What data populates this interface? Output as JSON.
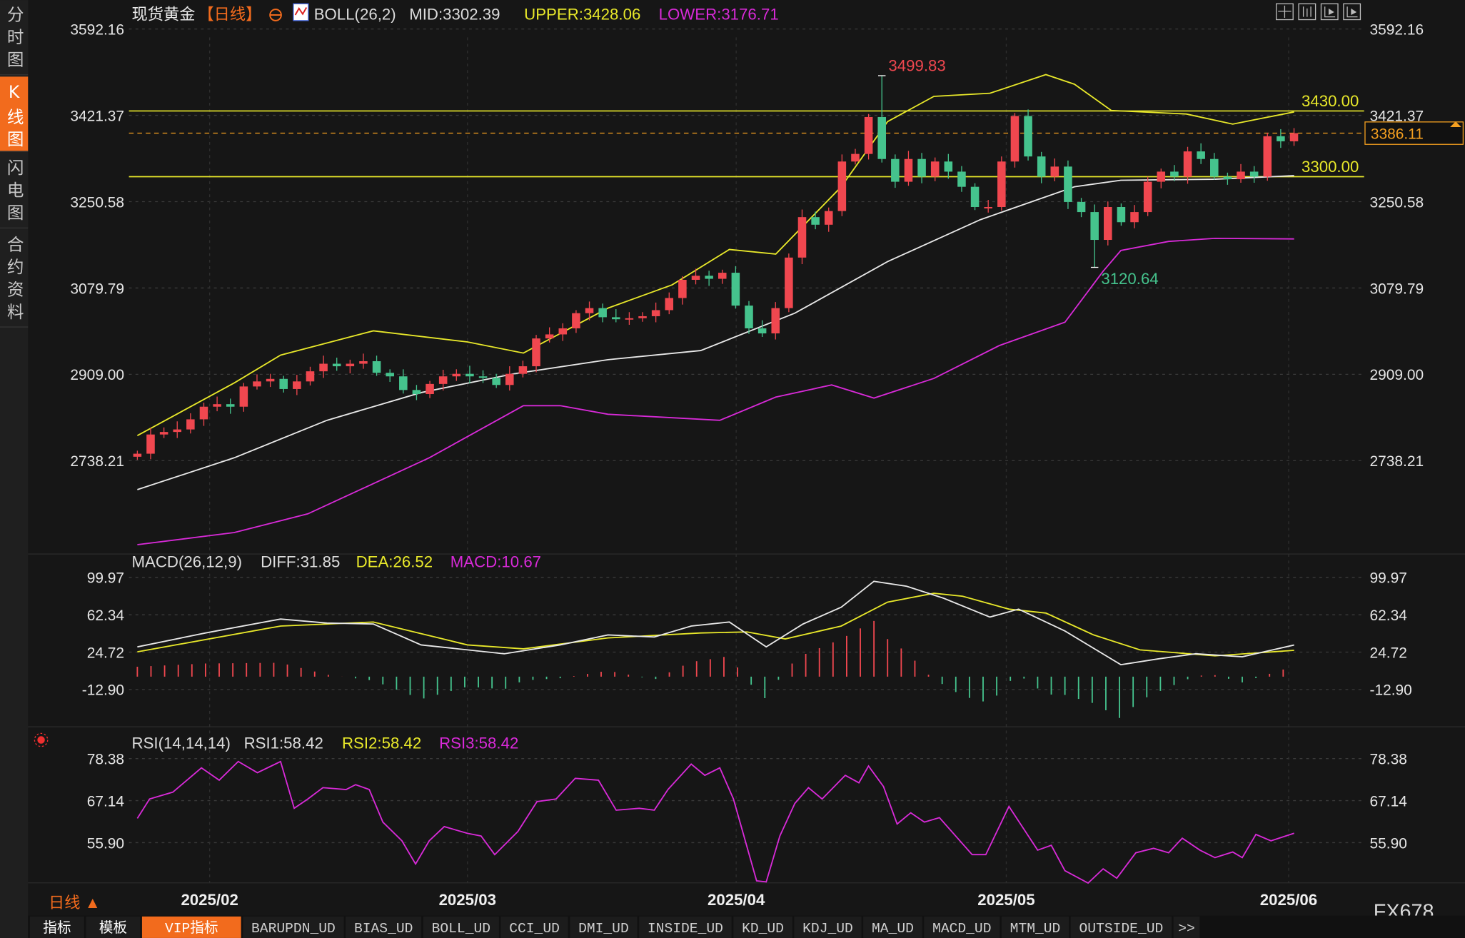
{
  "sidebar": {
    "items": [
      {
        "label": "分时图",
        "chars": [
          "分",
          "时",
          "图"
        ],
        "active": false
      },
      {
        "label": "K线图",
        "chars": [
          "K",
          "线",
          "图"
        ],
        "active": true
      },
      {
        "label": "闪电图",
        "chars": [
          "闪",
          "电",
          "图"
        ],
        "active": false
      },
      {
        "label": "合约资料",
        "chars": [
          "合",
          "约",
          "资",
          "料"
        ],
        "active": false
      }
    ]
  },
  "header": {
    "symbol": "现货黄金",
    "period": "【日线】",
    "boll": "BOLL(26,2)",
    "mid": "MID:3302.39",
    "upper": "UPPER:3428.06",
    "lower": "LOWER:3176.71"
  },
  "price_axis": [
    "3592.16",
    "3421.37",
    "3250.58",
    "3079.79",
    "2909.00",
    "2738.21"
  ],
  "price_axis_values": [
    3592.16,
    3421.37,
    3250.58,
    3079.79,
    2909.0,
    2738.21
  ],
  "current_price": "3386.11",
  "current_price_value": 3386.11,
  "hlines": [
    {
      "label": "3430.00",
      "value": 3430.0
    },
    {
      "label": "3300.00",
      "value": 3300.0
    }
  ],
  "marks": {
    "high": {
      "index": 56,
      "value": 3499.83,
      "label": "3499.83"
    },
    "low": {
      "index": 72,
      "value": 3120.64,
      "label": "3120.64"
    }
  },
  "closes": [
    2752,
    2790,
    2795,
    2800,
    2820,
    2845,
    2850,
    2845,
    2885,
    2895,
    2900,
    2880,
    2895,
    2915,
    2930,
    2925,
    2930,
    2935,
    2912,
    2905,
    2878,
    2870,
    2890,
    2905,
    2910,
    2905,
    2902,
    2888,
    2910,
    2925,
    2980,
    2988,
    3000,
    3030,
    3040,
    3022,
    3018,
    3020,
    3024,
    3036,
    3060,
    3096,
    3104,
    3098,
    3110,
    3045,
    3000,
    2990,
    3040,
    3140,
    3220,
    3205,
    3232,
    3330,
    3345,
    3418,
    3335,
    3290,
    3335,
    3300,
    3330,
    3310,
    3280,
    3240,
    3240,
    3330,
    3420,
    3340,
    3300,
    3320,
    3250,
    3230,
    3175,
    3240,
    3210,
    3230,
    3290,
    3310,
    3300,
    3350,
    3335,
    3300,
    3295,
    3310,
    3300,
    3380,
    3370,
    3386.11
  ],
  "boll_lines": {
    "mid": [
      [
        0,
        2681
      ],
      [
        7.1,
        2744
      ],
      [
        13.9,
        2818
      ],
      [
        20.8,
        2873
      ],
      [
        27.6,
        2910
      ],
      [
        34.5,
        2938
      ],
      [
        41.3,
        2956
      ],
      [
        48.2,
        3030
      ],
      [
        55,
        3132
      ],
      [
        61.8,
        3215
      ],
      [
        68.7,
        3280
      ],
      [
        72.1,
        3293
      ],
      [
        79,
        3295
      ],
      [
        84.8,
        3302
      ]
    ],
    "upper": [
      [
        0,
        2788
      ],
      [
        7.1,
        2892
      ],
      [
        10.5,
        2947
      ],
      [
        17.3,
        2995
      ],
      [
        24.2,
        2973
      ],
      [
        28.3,
        2951
      ],
      [
        34.5,
        3040
      ],
      [
        39.2,
        3086
      ],
      [
        43.4,
        3156
      ],
      [
        46.8,
        3147
      ],
      [
        51.6,
        3280
      ],
      [
        55,
        3409
      ],
      [
        58.4,
        3459
      ],
      [
        62.5,
        3465
      ],
      [
        66.6,
        3502
      ],
      [
        68.7,
        3483
      ],
      [
        71.4,
        3431
      ],
      [
        76.9,
        3424
      ],
      [
        80.3,
        3404
      ],
      [
        84.8,
        3428
      ]
    ],
    "lower": [
      [
        0,
        2572
      ],
      [
        7.1,
        2596
      ],
      [
        12.5,
        2633
      ],
      [
        21.4,
        2744
      ],
      [
        28.3,
        2847
      ],
      [
        31,
        2847
      ],
      [
        34.5,
        2830
      ],
      [
        42.7,
        2818
      ],
      [
        46.8,
        2864
      ],
      [
        50.9,
        2888
      ],
      [
        54,
        2862
      ],
      [
        58.4,
        2901
      ],
      [
        63.2,
        2966
      ],
      [
        68,
        3012
      ],
      [
        70.8,
        3113
      ],
      [
        72.1,
        3154
      ],
      [
        75.6,
        3172
      ],
      [
        79,
        3178
      ],
      [
        84.8,
        3177
      ]
    ]
  },
  "macd": {
    "title": "MACD(26,12,9)",
    "diff_label": "DIFF:31.85",
    "dea_label": "DEA:26.52",
    "macd_label": "MACD:10.67",
    "axis": [
      "99.97",
      "62.34",
      "24.72",
      "-12.90"
    ],
    "axis_values": [
      99.97,
      62.34,
      24.72,
      -12.9
    ],
    "diff": [
      [
        0,
        30
      ],
      [
        5,
        44
      ],
      [
        10.5,
        58
      ],
      [
        13.9,
        54
      ],
      [
        17.3,
        53
      ],
      [
        20.8,
        32
      ],
      [
        26.9,
        23
      ],
      [
        31,
        32
      ],
      [
        34.5,
        42
      ],
      [
        37.9,
        40
      ],
      [
        40.6,
        51
      ],
      [
        43.4,
        55
      ],
      [
        46.1,
        30
      ],
      [
        48.8,
        53
      ],
      [
        51.6,
        70
      ],
      [
        54,
        96
      ],
      [
        56.4,
        91
      ],
      [
        59.1,
        79
      ],
      [
        62.5,
        60
      ],
      [
        64.6,
        68
      ],
      [
        68,
        46
      ],
      [
        72.1,
        12
      ],
      [
        74.9,
        18
      ],
      [
        77.6,
        23
      ],
      [
        81,
        20
      ],
      [
        84.8,
        31.85
      ]
    ],
    "dea": [
      [
        0,
        25
      ],
      [
        10.5,
        51
      ],
      [
        17.3,
        55
      ],
      [
        24.2,
        32
      ],
      [
        28.3,
        28
      ],
      [
        34.5,
        39
      ],
      [
        41.3,
        44
      ],
      [
        44.7,
        45
      ],
      [
        47.5,
        38
      ],
      [
        51.6,
        51
      ],
      [
        55,
        75
      ],
      [
        58.4,
        84
      ],
      [
        60.5,
        81
      ],
      [
        63.9,
        68
      ],
      [
        66.6,
        64
      ],
      [
        70.1,
        42
      ],
      [
        73.5,
        27
      ],
      [
        79,
        21
      ],
      [
        84.8,
        26.52
      ]
    ]
  },
  "rsi": {
    "title": "RSI(14,14,14)",
    "rsi1_label": "RSI1:58.42",
    "rsi2_label": "RSI2:58.42",
    "rsi3_label": "RSI3:58.42",
    "axis": [
      "78.38",
      "67.14",
      "55.90"
    ],
    "axis_values": [
      78.38,
      67.14,
      55.9
    ],
    "values": [
      [
        0,
        62.4
      ],
      [
        0.9,
        67.6
      ],
      [
        2.6,
        69.4
      ],
      [
        4.7,
        75.9
      ],
      [
        6,
        72.6
      ],
      [
        7.4,
        77.6
      ],
      [
        8.8,
        74.6
      ],
      [
        10.5,
        77.6
      ],
      [
        11.5,
        65.1
      ],
      [
        12.5,
        67.6
      ],
      [
        13.6,
        70.6
      ],
      [
        15.3,
        70.1
      ],
      [
        16,
        71.4
      ],
      [
        17,
        70.1
      ],
      [
        18,
        61.4
      ],
      [
        19.4,
        56.4
      ],
      [
        20.4,
        50.2
      ],
      [
        21.4,
        56.4
      ],
      [
        22.5,
        60.2
      ],
      [
        24.2,
        58.4
      ],
      [
        25.2,
        57.7
      ],
      [
        26.2,
        52.7
      ],
      [
        27.9,
        58.9
      ],
      [
        29.3,
        66.9
      ],
      [
        30.7,
        67.6
      ],
      [
        32.1,
        73.1
      ],
      [
        33.8,
        72.6
      ],
      [
        35.1,
        64.6
      ],
      [
        36.8,
        65.1
      ],
      [
        37.9,
        64.6
      ],
      [
        38.9,
        70.1
      ],
      [
        40.6,
        76.9
      ],
      [
        41.6,
        73.9
      ],
      [
        42.7,
        75.9
      ],
      [
        43.7,
        67.6
      ],
      [
        45.4,
        45.7
      ],
      [
        46.1,
        45.4
      ],
      [
        47.1,
        57.7
      ],
      [
        48.2,
        66.4
      ],
      [
        49.2,
        70.6
      ],
      [
        50.2,
        67.6
      ],
      [
        51.9,
        73.9
      ],
      [
        52.9,
        71.9
      ],
      [
        53.6,
        76.4
      ],
      [
        54.7,
        70.9
      ],
      [
        55.7,
        60.9
      ],
      [
        56.7,
        63.9
      ],
      [
        57.7,
        61.4
      ],
      [
        58.8,
        62.6
      ],
      [
        61.2,
        52.7
      ],
      [
        62.2,
        52.7
      ],
      [
        63.9,
        65.6
      ],
      [
        66,
        53.9
      ],
      [
        67,
        55.2
      ],
      [
        68,
        48.4
      ],
      [
        69.7,
        45.1
      ],
      [
        70.8,
        48.9
      ],
      [
        71.8,
        46.4
      ],
      [
        73.2,
        53.2
      ],
      [
        74.5,
        54.4
      ],
      [
        75.6,
        53.2
      ],
      [
        76.6,
        57.1
      ],
      [
        77.9,
        53.9
      ],
      [
        79,
        51.9
      ],
      [
        80.3,
        53.4
      ],
      [
        81,
        51.9
      ],
      [
        82,
        58.1
      ],
      [
        83.1,
        56.4
      ],
      [
        84.8,
        58.42
      ]
    ]
  },
  "x_axis": {
    "labels": [
      {
        "label": "2025/02",
        "pos": 5.3
      },
      {
        "label": "2025/03",
        "pos": 24.2
      },
      {
        "label": "2025/04",
        "pos": 43.9
      },
      {
        "label": "2025/05",
        "pos": 63.7
      },
      {
        "label": "2025/06",
        "pos": 84.4
      }
    ]
  },
  "period_selector": "日线 ▲",
  "brand": "FX678",
  "bottom_tabs": [
    "指标",
    "模板",
    "VIP指标",
    "BARUPDN_UD",
    "BIAS_UD",
    "BOLL_UD",
    "CCI_UD",
    "DMI_UD",
    "INSIDE_UD",
    "KD_UD",
    "KDJ_UD",
    "MA_UD",
    "MACD_UD",
    "MTM_UD",
    "OUTSIDE_UD",
    ">>"
  ],
  "active_tab": "VIP指标",
  "colors": {
    "up": "#f0474f",
    "down": "#45c38d",
    "mid": "#e8e8e8",
    "upper": "#e8e82a",
    "lower": "#d82ad8",
    "accent": "#f26b1d"
  }
}
